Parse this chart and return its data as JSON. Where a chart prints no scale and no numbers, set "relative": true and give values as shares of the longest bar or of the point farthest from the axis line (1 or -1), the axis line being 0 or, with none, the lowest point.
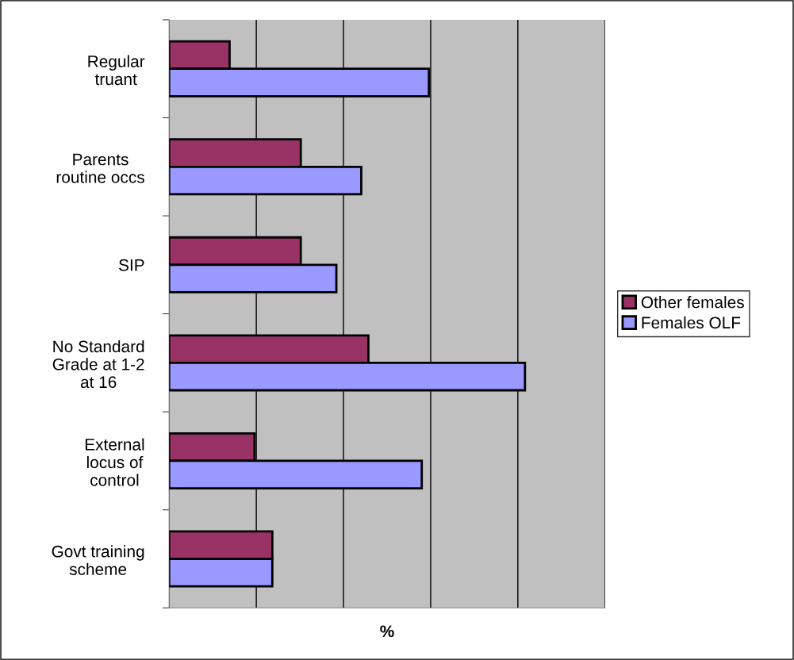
{
  "chart_data": {
    "type": "bar",
    "orientation": "horizontal",
    "relative": true,
    "xlabel": "%",
    "categories": [
      "Regular\ntruant",
      "Parents\nroutine occs",
      "SIP",
      "No Standard\nGrade at 1-2\nat 16",
      "External\nlocus of\ncontrol",
      "Govt training\nscheme"
    ],
    "series": [
      {
        "name": "Other females",
        "color": "#993366",
        "values": [
          0.17,
          0.37,
          0.37,
          0.56,
          0.24,
          0.29
        ]
      },
      {
        "name": "Females OLF",
        "color": "#9999ff",
        "values": [
          0.73,
          0.54,
          0.47,
          1,
          0.71,
          0.29
        ]
      }
    ],
    "grid": "x",
    "legend": "right"
  }
}
